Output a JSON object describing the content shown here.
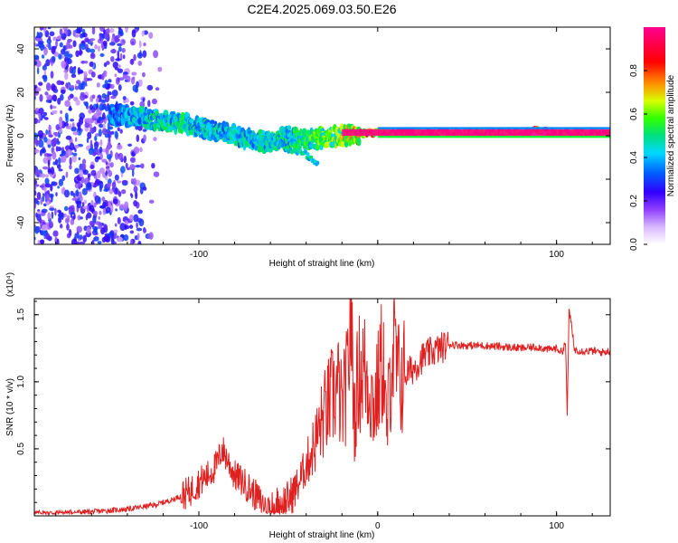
{
  "figure_title": "C2E4.2025.069.03.50.E26",
  "chart_data": [
    {
      "type": "heatmap",
      "title": "C2E4.2025.069.03.50.E26",
      "xlabel": "Height of straight line (km)",
      "ylabel": "Frequency (Hz)",
      "xlim": [
        -192,
        130
      ],
      "ylim": [
        -50,
        50
      ],
      "x_ticks": [
        -100,
        0,
        100
      ],
      "x_tick_labels": [
        "-100",
        "",
        "100"
      ],
      "y_ticks": [
        -40,
        -20,
        0,
        20,
        40
      ],
      "y_tick_labels": [
        "-40",
        "-20",
        "0",
        "20",
        "40"
      ],
      "colorbar": {
        "label": "Normalized spectral amplitude",
        "range": [
          0,
          1
        ],
        "ticks": [
          0.0,
          0.2,
          0.4,
          0.6,
          0.8
        ],
        "tick_labels": [
          "0.0",
          "0.2",
          "0.4",
          "0.6",
          "0.8"
        ],
        "colormap": [
          "#ffffff",
          "#b070ff",
          "#3000ff",
          "#0060ff",
          "#00d8ff",
          "#00e060",
          "#30ff00",
          "#d8ff00",
          "#ff9000",
          "#ff0000",
          "#ff0080",
          "#ff0090"
        ]
      },
      "noise_region": {
        "x_range": [
          -192,
          -120
        ],
        "freq_range": [
          -50,
          50
        ],
        "amplitude": 0.2
      },
      "dispersion_track": [
        {
          "x": -150,
          "f": 10,
          "amp": 0.35
        },
        {
          "x": -140,
          "f": 9,
          "amp": 0.4
        },
        {
          "x": -130,
          "f": 8,
          "amp": 0.45
        },
        {
          "x": -120,
          "f": 7,
          "amp": 0.45
        },
        {
          "x": -110,
          "f": 6,
          "amp": 0.5
        },
        {
          "x": -100,
          "f": 4,
          "amp": 0.45
        },
        {
          "x": -90,
          "f": 2,
          "amp": 0.45
        },
        {
          "x": -80,
          "f": 0,
          "amp": 0.45
        },
        {
          "x": -70,
          "f": -2,
          "amp": 0.45
        },
        {
          "x": -60,
          "f": -3,
          "amp": 0.45
        },
        {
          "x": -50,
          "f": 0,
          "amp": 0.5
        },
        {
          "x": -40,
          "f": -2,
          "amp": 0.55
        },
        {
          "x": -30,
          "f": -1,
          "amp": 0.6
        },
        {
          "x": -20,
          "f": 0,
          "amp": 0.7
        },
        {
          "x": -10,
          "f": 1,
          "amp": 0.8
        },
        {
          "x": 0,
          "f": 1.5,
          "amp": 0.9
        },
        {
          "x": 20,
          "f": 1.5,
          "amp": 1.0
        },
        {
          "x": 50,
          "f": 1.5,
          "amp": 1.0
        },
        {
          "x": 80,
          "f": 1.5,
          "amp": 1.0
        },
        {
          "x": 90,
          "f": 2.5,
          "amp": 1.0
        },
        {
          "x": 100,
          "f": 1.5,
          "amp": 1.0
        },
        {
          "x": 130,
          "f": 1.5,
          "amp": 1.0
        }
      ],
      "tail_branch": [
        {
          "x": -60,
          "f": -4
        },
        {
          "x": -50,
          "f": -6
        },
        {
          "x": -40,
          "f": -9
        },
        {
          "x": -33,
          "f": -14
        }
      ]
    },
    {
      "type": "line",
      "xlabel": "Height of straight line (km)",
      "ylabel": "SNR (10 * v/v)",
      "y_scale_label": "(x10⁴)",
      "xlim": [
        -192,
        130
      ],
      "ylim": [
        0,
        1.62
      ],
      "x_ticks": [
        -100,
        0,
        100
      ],
      "x_tick_labels": [
        "-100",
        "0",
        "100"
      ],
      "y_ticks": [
        0.5,
        1.0,
        1.5
      ],
      "y_tick_labels": [
        "0.5",
        "1.0",
        "1.5"
      ],
      "color": "#e02020",
      "series": [
        {
          "name": "SNR",
          "x": [
            -192,
            -160,
            -140,
            -125,
            -115,
            -105,
            -100,
            -95,
            -90,
            -87,
            -84,
            -80,
            -75,
            -70,
            -65,
            -60,
            -55,
            -50,
            -45,
            -40,
            -35,
            -30,
            -25,
            -22,
            -20,
            -17,
            -15,
            -13,
            -11,
            -8,
            -5,
            -2,
            0,
            3,
            5,
            8,
            10,
            12,
            15,
            20,
            25,
            30,
            35,
            40,
            50,
            60,
            70,
            80,
            90,
            95,
            100,
            103,
            105,
            106,
            107,
            110,
            115,
            120,
            125,
            130
          ],
          "y": [
            0.02,
            0.03,
            0.05,
            0.08,
            0.12,
            0.18,
            0.25,
            0.3,
            0.38,
            0.5,
            0.42,
            0.3,
            0.25,
            0.18,
            0.1,
            0.06,
            0.08,
            0.12,
            0.22,
            0.38,
            0.55,
            0.75,
            0.9,
            0.95,
            0.78,
            1.0,
            1.55,
            0.7,
            1.05,
            1.1,
            1.0,
            0.8,
            0.95,
            1.2,
            0.6,
            1.25,
            1.15,
            1.0,
            1.05,
            1.1,
            1.18,
            1.22,
            1.25,
            1.28,
            1.27,
            1.27,
            1.26,
            1.25,
            1.26,
            1.24,
            1.25,
            1.22,
            1.3,
            0.75,
            1.55,
            1.24,
            1.23,
            1.23,
            1.22,
            1.23
          ]
        }
      ]
    }
  ]
}
